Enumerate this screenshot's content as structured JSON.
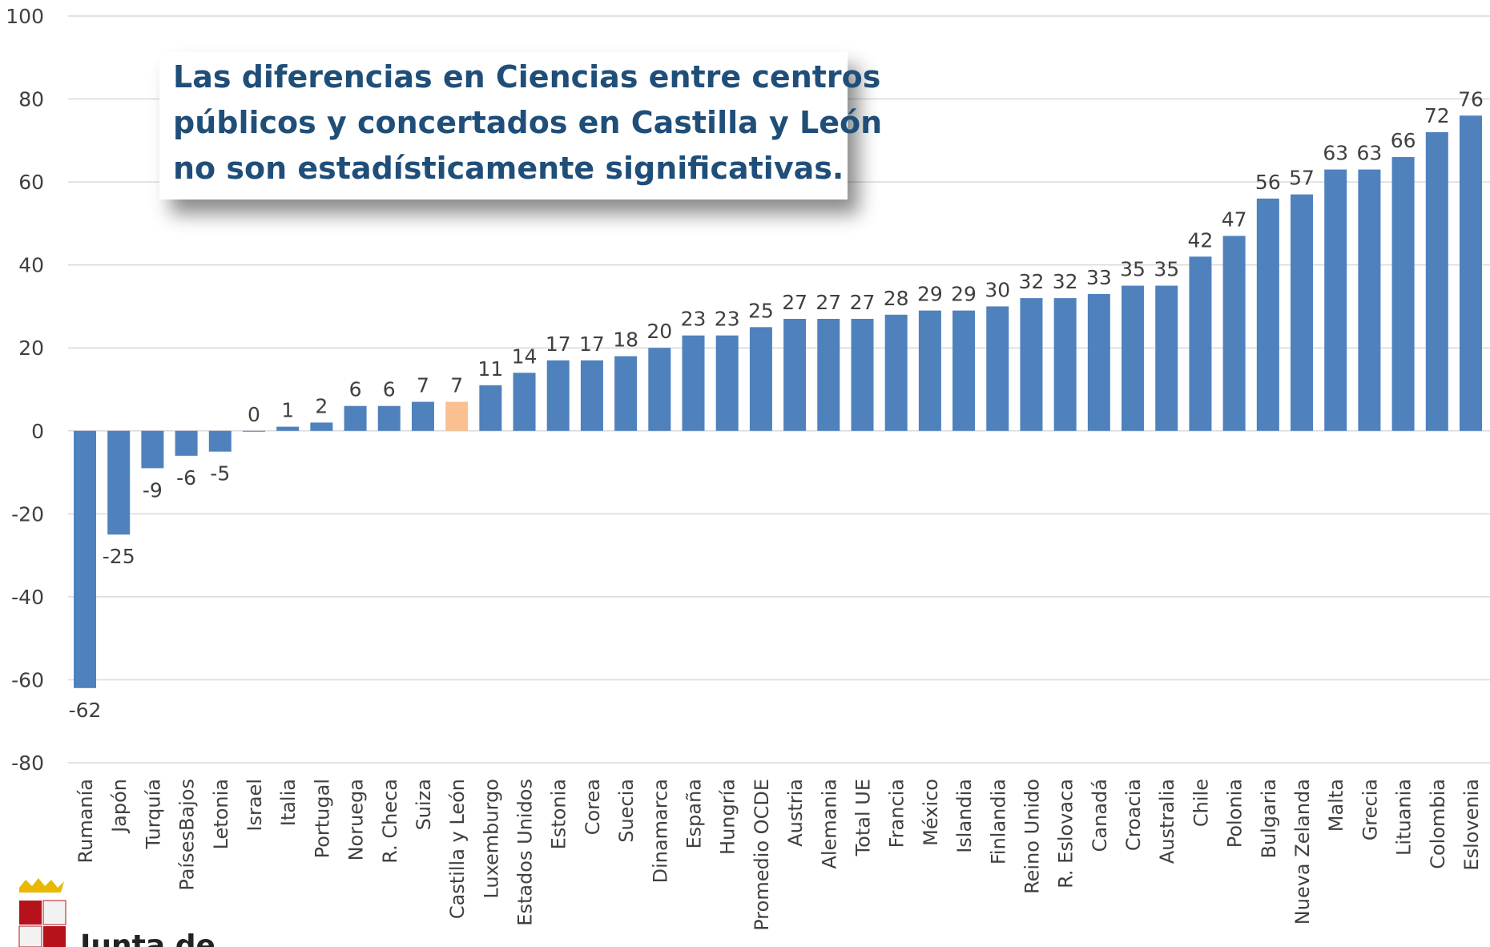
{
  "chart_data": {
    "type": "bar",
    "annotation": [
      "Las diferencias en Ciencias entre centros",
      "públicos y concertados en Castilla y León",
      "no son estadísticamente significativas."
    ],
    "categories": [
      "Rumanía",
      "Japón",
      "Turquía",
      "PaísesBajos",
      "Letonia",
      "Israel",
      "Italia",
      "Portugal",
      "Noruega",
      "R. Checa",
      "Suiza",
      "Castilla y León",
      "Luxemburgo",
      "Estados Unidos",
      "Estonia",
      "Corea",
      "Suecia",
      "Dinamarca",
      "España",
      "Hungría",
      "Promedio OCDE",
      "Austria",
      "Alemania",
      "Total UE",
      "Francia",
      "México",
      "Islandia",
      "Finlandia",
      "Reino Unido",
      "R. Eslovaca",
      "Canadá",
      "Croacia",
      "Australia",
      "Chile",
      "Polonia",
      "Bulgaria",
      "Nueva Zelanda",
      "Malta",
      "Grecia",
      "Lituania",
      "Colombia",
      "Eslovenia"
    ],
    "values": [
      -62,
      -25,
      -9,
      -6,
      -5,
      0,
      1,
      2,
      6,
      6,
      7,
      7,
      11,
      14,
      17,
      17,
      18,
      20,
      23,
      23,
      25,
      27,
      27,
      27,
      28,
      29,
      29,
      30,
      32,
      32,
      33,
      35,
      35,
      42,
      47,
      56,
      57,
      63,
      63,
      66,
      72,
      76
    ],
    "colors": [
      "#4f81bd",
      "#4f81bd",
      "#4f81bd",
      "#4f81bd",
      "#4f81bd",
      "#4f81bd",
      "#4f81bd",
      "#4f81bd",
      "#4f81bd",
      "#4f81bd",
      "#4f81bd",
      "#fac090",
      "#4f81bd",
      "#4f81bd",
      "#4f81bd",
      "#4f81bd",
      "#4f81bd",
      "#4f81bd",
      "#4f81bd",
      "#4f81bd",
      "#4f81bd",
      "#4f81bd",
      "#4f81bd",
      "#4f81bd",
      "#4f81bd",
      "#4f81bd",
      "#4f81bd",
      "#4f81bd",
      "#4f81bd",
      "#4f81bd",
      "#4f81bd",
      "#4f81bd",
      "#4f81bd",
      "#4f81bd",
      "#4f81bd",
      "#4f81bd",
      "#4f81bd",
      "#4f81bd",
      "#4f81bd",
      "#4f81bd",
      "#4f81bd",
      "#4f81bd"
    ],
    "ylim": [
      -80,
      100
    ],
    "yticks": [
      -80,
      -60,
      -40,
      -20,
      0,
      20,
      40,
      60,
      80,
      100
    ],
    "grid": true
  },
  "logo_text": "Junta de"
}
